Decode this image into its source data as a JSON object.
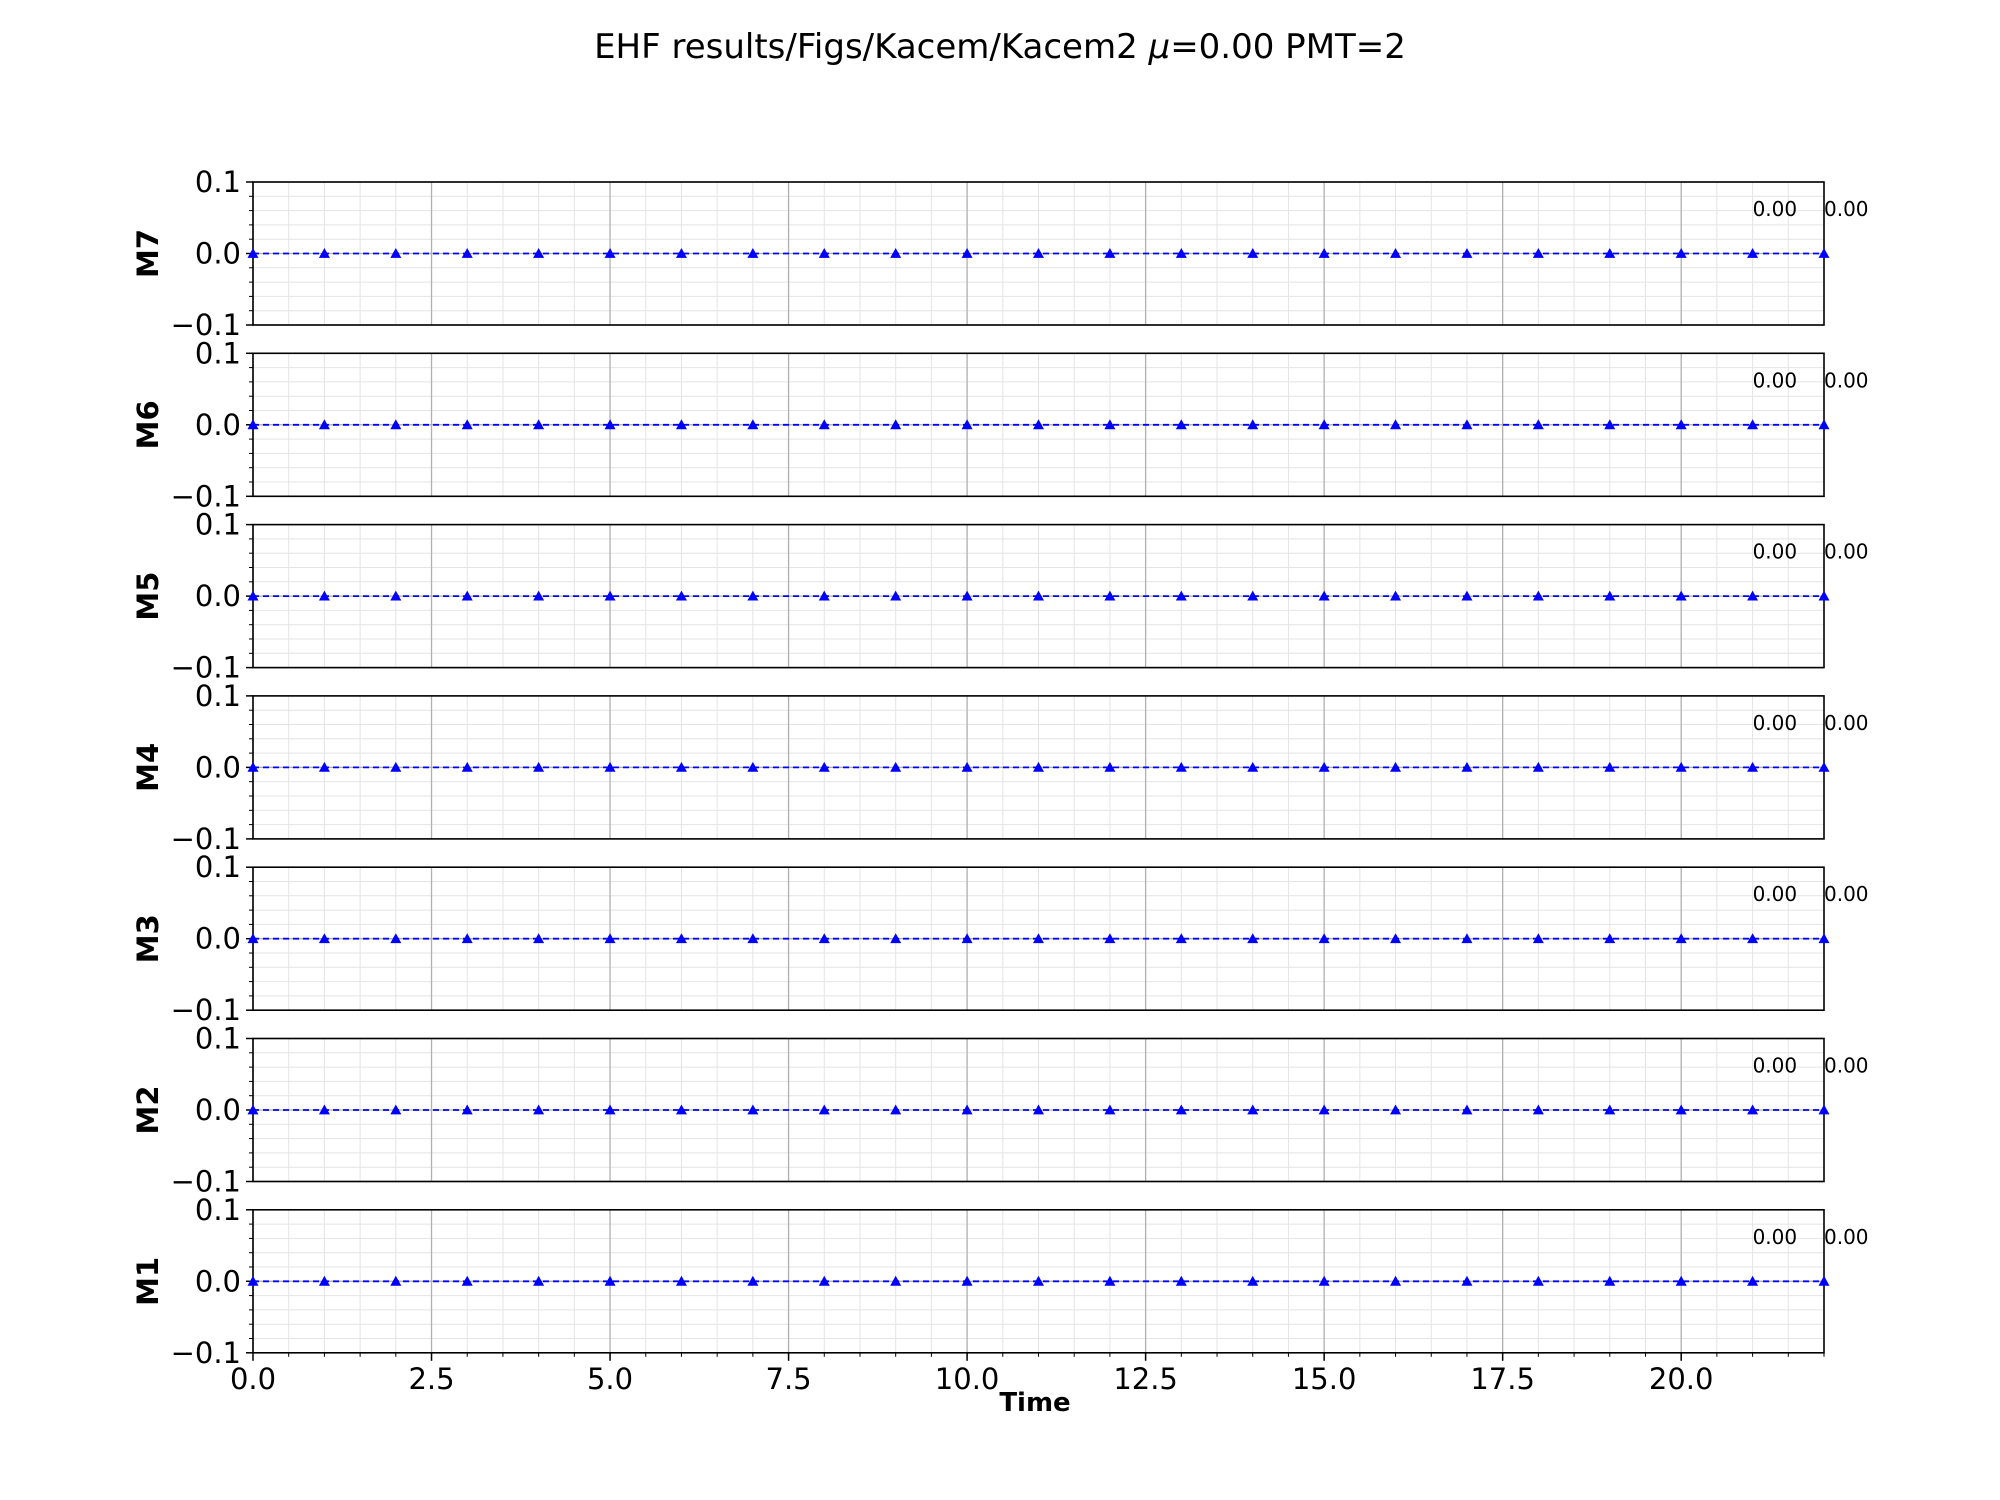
{
  "figure": {
    "title_text": "EHF results/Figs/Kacem/Kacem2 ",
    "title_mu_symbol": "μ",
    "title_suffix": "=0.00 PMT=2"
  },
  "chart_data": {
    "type": "line",
    "xlabel": "Time",
    "xlim": [
      0,
      22
    ],
    "ylim": [
      -0.1,
      0.1
    ],
    "x_ticks": [
      "0.0",
      "2.5",
      "5.0",
      "7.5",
      "10.0",
      "12.5",
      "15.0",
      "17.5",
      "20.0"
    ],
    "y_ticks": [
      "0.1",
      "0.0",
      "−0.1"
    ],
    "grid": true,
    "line_color": "#0000ff",
    "line_style": "dashed",
    "marker": "triangle",
    "x": [
      0,
      1,
      2,
      3,
      4,
      5,
      6,
      7,
      8,
      9,
      10,
      11,
      12,
      13,
      14,
      15,
      16,
      17,
      18,
      19,
      20,
      21,
      22
    ],
    "panels": [
      {
        "ylabel": "M7",
        "values": [
          0,
          0,
          0,
          0,
          0,
          0,
          0,
          0,
          0,
          0,
          0,
          0,
          0,
          0,
          0,
          0,
          0,
          0,
          0,
          0,
          0,
          0,
          0
        ],
        "annotations": [
          "0.00",
          "0.00"
        ]
      },
      {
        "ylabel": "M6",
        "values": [
          0,
          0,
          0,
          0,
          0,
          0,
          0,
          0,
          0,
          0,
          0,
          0,
          0,
          0,
          0,
          0,
          0,
          0,
          0,
          0,
          0,
          0,
          0
        ],
        "annotations": [
          "0.00",
          "0.00"
        ]
      },
      {
        "ylabel": "M5",
        "values": [
          0,
          0,
          0,
          0,
          0,
          0,
          0,
          0,
          0,
          0,
          0,
          0,
          0,
          0,
          0,
          0,
          0,
          0,
          0,
          0,
          0,
          0,
          0
        ],
        "annotations": [
          "0.00",
          "0.00"
        ]
      },
      {
        "ylabel": "M4",
        "values": [
          0,
          0,
          0,
          0,
          0,
          0,
          0,
          0,
          0,
          0,
          0,
          0,
          0,
          0,
          0,
          0,
          0,
          0,
          0,
          0,
          0,
          0,
          0
        ],
        "annotations": [
          "0.00",
          "0.00"
        ]
      },
      {
        "ylabel": "M3",
        "values": [
          0,
          0,
          0,
          0,
          0,
          0,
          0,
          0,
          0,
          0,
          0,
          0,
          0,
          0,
          0,
          0,
          0,
          0,
          0,
          0,
          0,
          0,
          0
        ],
        "annotations": [
          "0.00",
          "0.00"
        ]
      },
      {
        "ylabel": "M2",
        "values": [
          0,
          0,
          0,
          0,
          0,
          0,
          0,
          0,
          0,
          0,
          0,
          0,
          0,
          0,
          0,
          0,
          0,
          0,
          0,
          0,
          0,
          0,
          0
        ],
        "annotations": [
          "0.00",
          "0.00"
        ]
      },
      {
        "ylabel": "M1",
        "values": [
          0,
          0,
          0,
          0,
          0,
          0,
          0,
          0,
          0,
          0,
          0,
          0,
          0,
          0,
          0,
          0,
          0,
          0,
          0,
          0,
          0,
          0,
          0
        ],
        "annotations": [
          "0.00",
          "0.00"
        ]
      }
    ]
  }
}
